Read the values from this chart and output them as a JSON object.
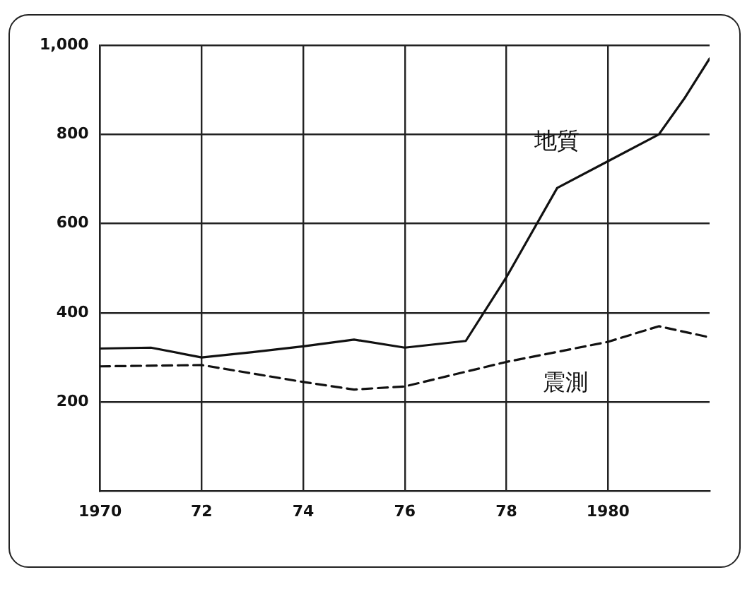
{
  "chart_data": {
    "type": "line",
    "xlim": [
      1970,
      1982
    ],
    "xticks": [
      1970,
      {
        "value": 1972,
        "label": "72"
      },
      {
        "value": 1974,
        "label": "74"
      },
      {
        "value": 1976,
        "label": "76"
      },
      {
        "value": 1978,
        "label": "78"
      },
      1980
    ],
    "ylim": [
      0,
      1000
    ],
    "yticks": [
      200,
      400,
      600,
      800,
      {
        "value": 1000,
        "label": "1,000"
      }
    ],
    "grid": true,
    "legend": false,
    "marker": "none",
    "series": [
      {
        "name": "地質",
        "color": "#111111",
        "line_style": "solid",
        "x": [
          1970,
          1971,
          1972,
          1973,
          1974,
          1975,
          1976,
          1977.2,
          1978,
          1979,
          1980,
          1981,
          1981.5,
          1982
        ],
        "values": [
          320,
          322,
          300,
          312,
          325,
          340,
          322,
          337,
          480,
          680,
          740,
          800,
          880,
          970
        ]
      },
      {
        "name": "震測",
        "color": "#111111",
        "line_style": "dashed",
        "x": [
          1970,
          1972,
          1974,
          1975,
          1976,
          1978,
          1980,
          1981,
          1982
        ],
        "values": [
          280,
          283,
          245,
          228,
          235,
          290,
          335,
          370,
          345
        ]
      }
    ]
  }
}
